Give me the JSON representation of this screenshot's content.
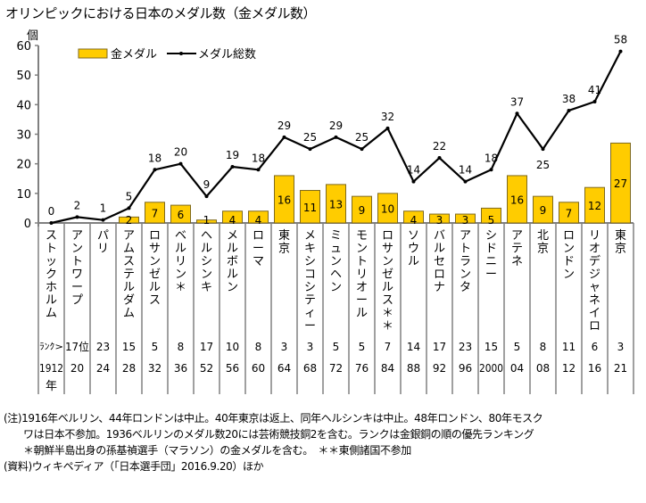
{
  "title": "オリンピックにおける日本のメダル数（金メダル数）",
  "chart_data": {
    "type": "bar+line",
    "title": "オリンピックにおける日本のメダル数（金メダル数）",
    "ylabel": "個",
    "ylim": [
      0,
      60
    ],
    "yticks": [
      "0",
      "10",
      "20",
      "30",
      "40",
      "50",
      "60"
    ],
    "grid": false,
    "legend": {
      "position": "top",
      "entries": [
        "金メダル",
        "メダル総数"
      ]
    },
    "colors": {
      "gold_fill": "#FFCC00",
      "gold_border": "#7F6A1E",
      "line": "#000000",
      "axis": "#808080"
    },
    "categories": [
      "ストックホルム",
      "アントワープ",
      "パリ",
      "アムステルダム",
      "ロサンゼルス",
      "ベルリン＊",
      "ヘルシンキ",
      "メルボルン",
      "ローマ",
      "東京",
      "メキシコシティー",
      "ミュンヘン",
      "モントリオール",
      "ロサンゼルス＊＊",
      "ソウル",
      "バルセロナ",
      "アトランタ",
      "シドニー",
      "アテネ",
      "北京",
      "ロンドン",
      "リオデジャネイロ",
      "東京"
    ],
    "series": [
      {
        "name": "金メダル",
        "type": "bar",
        "values": [
          0,
          0,
          0,
          2,
          7,
          6,
          1,
          4,
          4,
          16,
          11,
          13,
          9,
          10,
          4,
          3,
          3,
          5,
          16,
          9,
          7,
          12,
          27
        ]
      },
      {
        "name": "メダル総数",
        "type": "line",
        "values": [
          0,
          2,
          1,
          5,
          18,
          20,
          9,
          19,
          18,
          29,
          25,
          29,
          25,
          32,
          14,
          22,
          14,
          18,
          37,
          25,
          38,
          41,
          58
        ]
      }
    ],
    "rank_label": "ﾗﾝｸ>",
    "ranks": [
      "17位",
      "23",
      "15",
      "5",
      "8",
      "17",
      "10",
      "8",
      "3",
      "3",
      "5",
      "5",
      "7",
      "14",
      "17",
      "23",
      "15",
      "5",
      "8",
      "11",
      "6",
      "3"
    ],
    "years": [
      "1912",
      "20",
      "24",
      "28",
      "32",
      "36",
      "52",
      "56",
      "60",
      "64",
      "68",
      "72",
      "76",
      "84",
      "88",
      "92",
      "96",
      "2000",
      "04",
      "08",
      "12",
      "16",
      "21"
    ],
    "year_suffix": "年"
  },
  "notes": [
    "(注)1916年ベルリン、44年ロンドンは中止。40年東京は返上、同年ヘルシンキは中止。48年ロンドン、80年モスク",
    "ワは日本不参加。1936ベルリンのメダル数20には芸術競技銅2を含む。ランクは金銀銅の順の優先ランキング",
    "＊朝鮮半島出身の孫基禎選手（マラソン）の金メダルを含む。　＊＊東側諸国不参加",
    "(資料)ウィキペディア（「日本選手団」2016.9.20）ほか"
  ]
}
